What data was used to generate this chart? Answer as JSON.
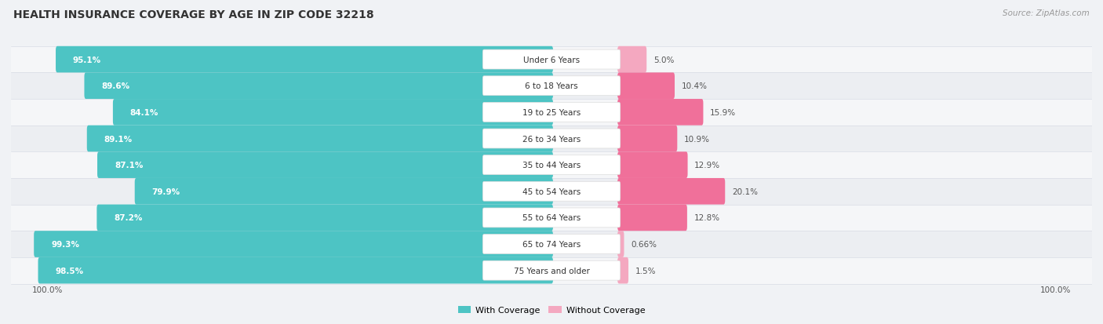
{
  "title": "HEALTH INSURANCE COVERAGE BY AGE IN ZIP CODE 32218",
  "source": "Source: ZipAtlas.com",
  "categories": [
    "Under 6 Years",
    "6 to 18 Years",
    "19 to 25 Years",
    "26 to 34 Years",
    "35 to 44 Years",
    "45 to 54 Years",
    "55 to 64 Years",
    "65 to 74 Years",
    "75 Years and older"
  ],
  "with_coverage": [
    95.1,
    89.6,
    84.1,
    89.1,
    87.1,
    79.9,
    87.2,
    99.3,
    98.5
  ],
  "without_coverage": [
    5.0,
    10.4,
    15.9,
    10.9,
    12.9,
    20.1,
    12.8,
    0.66,
    1.5
  ],
  "with_labels": [
    "95.1%",
    "89.6%",
    "84.1%",
    "89.1%",
    "87.1%",
    "79.9%",
    "87.2%",
    "99.3%",
    "98.5%"
  ],
  "without_labels": [
    "5.0%",
    "10.4%",
    "15.9%",
    "10.9%",
    "12.9%",
    "20.1%",
    "12.8%",
    "0.66%",
    "1.5%"
  ],
  "color_with": "#4DC4C4",
  "color_without_dark": "#F0709A",
  "color_without_light": "#F4A8C0",
  "without_coverage_threshold": 10,
  "row_colors": [
    "#F5F6F8",
    "#ECEEF2"
  ],
  "separator_color": "#D8DCE4",
  "bg_color": "#F0F2F5",
  "pill_color": "#FFFFFF",
  "pill_border": "#DDDDDD",
  "label_color_white": "#FFFFFF",
  "label_color_dark": "#555555",
  "title_color": "#333333",
  "source_color": "#999999"
}
